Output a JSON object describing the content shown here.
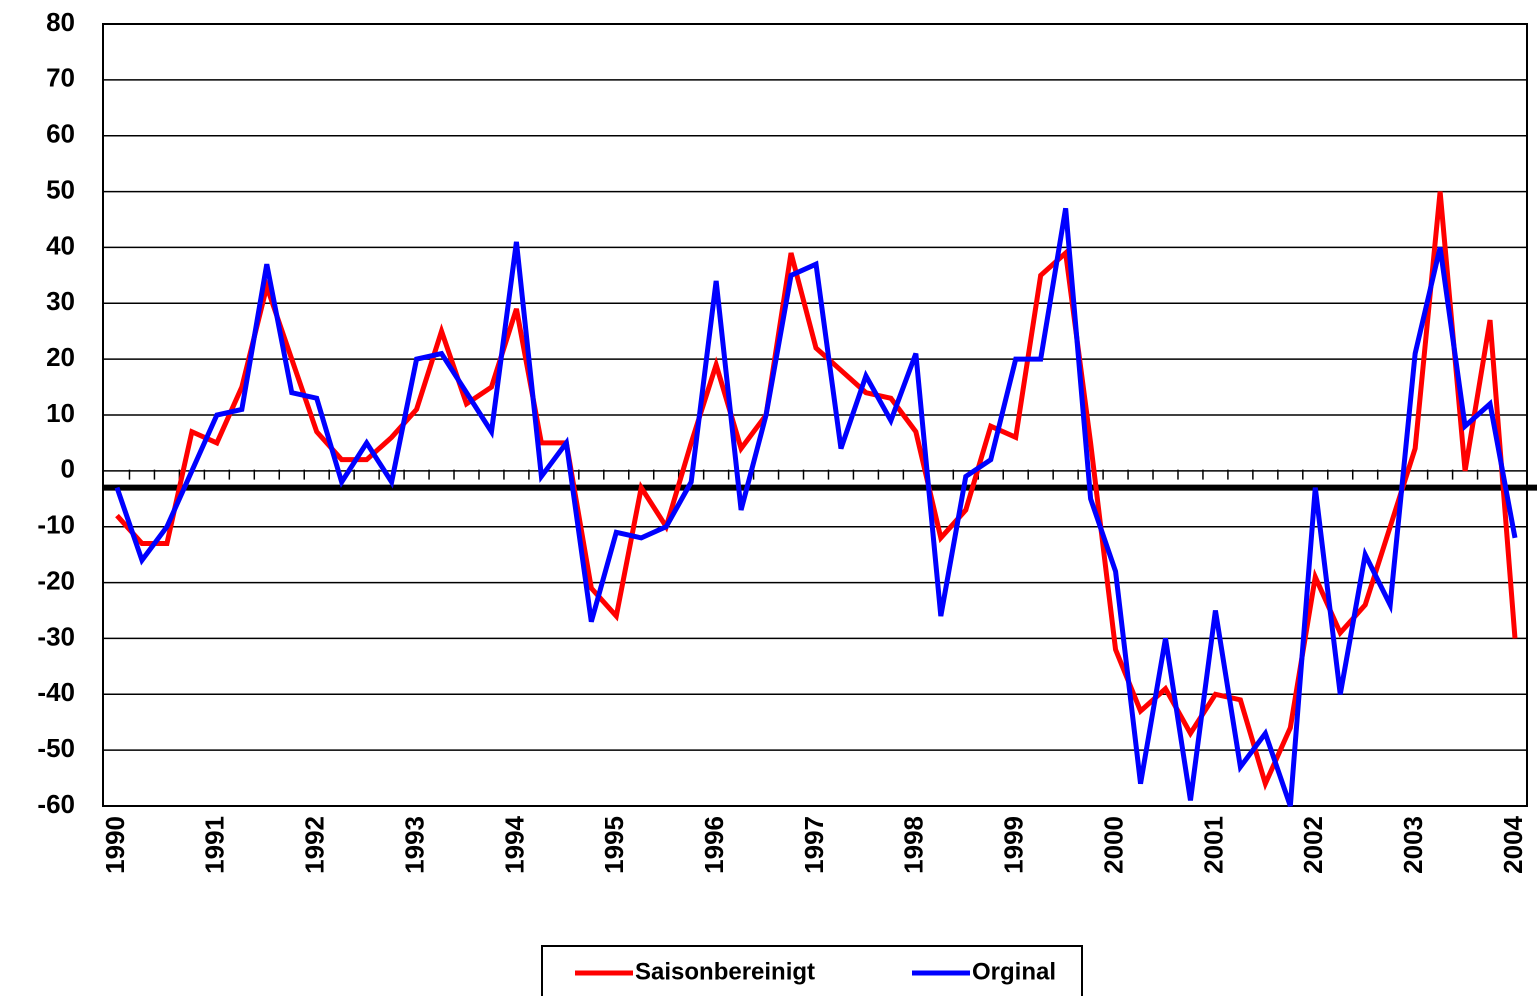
{
  "chart_data": {
    "type": "line",
    "categories": [
      "1990",
      null,
      null,
      null,
      "1991",
      null,
      null,
      null,
      "1992",
      null,
      null,
      null,
      "1993",
      null,
      null,
      null,
      "1994",
      null,
      null,
      null,
      "1995",
      null,
      null,
      null,
      "1996",
      null,
      null,
      null,
      "1997",
      null,
      null,
      null,
      "1998",
      null,
      null,
      null,
      "1999",
      null,
      null,
      null,
      "2000",
      null,
      null,
      null,
      "2001",
      null,
      null,
      null,
      "2002",
      null,
      null,
      null,
      "2003",
      null,
      null,
      null,
      "2004"
    ],
    "series": [
      {
        "name": "Saisonbereinigt",
        "color": "#ff0000",
        "values": [
          -8,
          -13,
          -13,
          7,
          5,
          15,
          33,
          20,
          7,
          2,
          2,
          6,
          11,
          25,
          12,
          15,
          29,
          5,
          5,
          -21,
          -26,
          -3,
          -10,
          5,
          19,
          4,
          10,
          39,
          22,
          18,
          14,
          13,
          7,
          -12,
          -7,
          8,
          6,
          35,
          39,
          5,
          -32,
          -43,
          -39,
          -47,
          -40,
          -41,
          -56,
          -46,
          -19,
          -29,
          -24,
          -10,
          4,
          50,
          0,
          27,
          -30
        ]
      },
      {
        "name": "Orginal",
        "color": "#0000ff",
        "values": [
          -3,
          -16,
          -10,
          0,
          10,
          11,
          37,
          14,
          13,
          -2,
          5,
          -2,
          20,
          21,
          14,
          7,
          41,
          -1,
          5,
          -27,
          -11,
          -12,
          -10,
          -2,
          34,
          -7,
          10,
          35,
          37,
          4,
          17,
          9,
          21,
          -26,
          -1,
          2,
          20,
          20,
          47,
          -5,
          -18,
          -56,
          -30,
          -59,
          -25,
          -53,
          -47,
          -60,
          -3,
          -40,
          -15,
          -24,
          21,
          40,
          8,
          12,
          -12
        ]
      }
    ],
    "ylim": [
      -60,
      80
    ],
    "yticks": [
      -60,
      -50,
      -40,
      -30,
      -20,
      -10,
      0,
      10,
      20,
      30,
      40,
      50,
      60,
      70,
      80
    ],
    "hline": -3,
    "grid": true,
    "legend": "bottom"
  }
}
